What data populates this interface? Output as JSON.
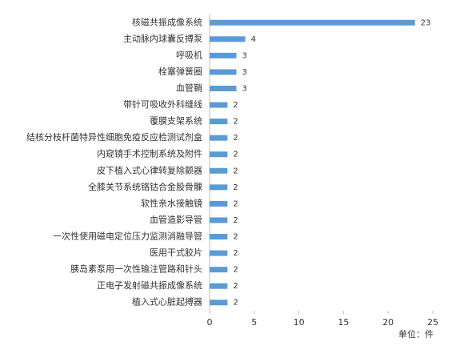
{
  "chart_data": {
    "type": "bar",
    "orientation": "horizontal",
    "categories": [
      "核磁共振成像系统",
      "主动脉内球囊反搏泵",
      "呼吸机",
      "栓塞弹簧圈",
      "血管鞘",
      "带针可吸收外科缝线",
      "覆膜支架系统",
      "结核分枝杆菌特异性细胞免疫反应检测试剂盒",
      "内窥镜手术控制系统及附件",
      "皮下植入式心律转复除颤器",
      "全膝关节系统铬钴合金股骨髁",
      "软性亲水接触镜",
      "血管造影导管",
      "一次性使用磁电定位压力监测消融导管",
      "医用干式胶片",
      "胰岛素泵用一次性输注管路和针头",
      "正电子发射磁共振成像系统",
      "植入式心脏起搏器"
    ],
    "values": [
      23,
      4,
      3,
      3,
      3,
      2,
      2,
      2,
      2,
      2,
      2,
      2,
      2,
      2,
      2,
      2,
      2,
      2
    ],
    "color": "#5b9bd5",
    "xlim": [
      0,
      25
    ],
    "xticks": [
      0,
      5,
      10,
      15,
      20,
      25
    ],
    "unit_label": "单位：件"
  }
}
